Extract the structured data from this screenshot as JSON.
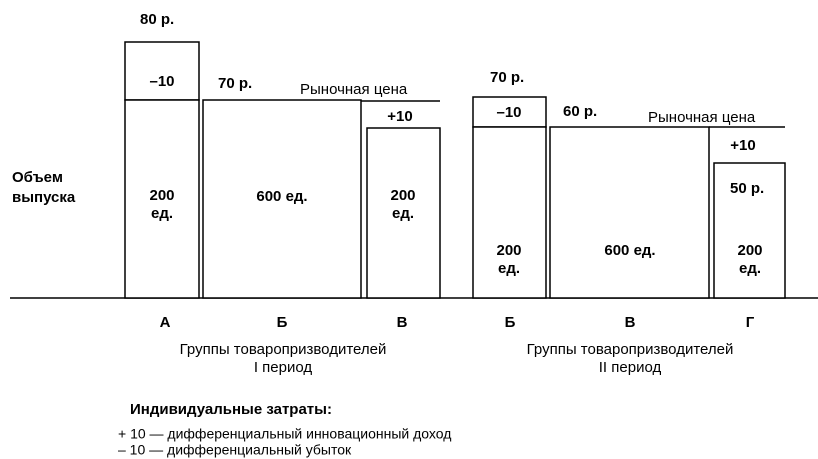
{
  "axis_label": [
    "Объем",
    "выпуска"
  ],
  "period_1": {
    "prices": [
      "80 р.",
      "70 р."
    ],
    "market_price": "Рыночная цена",
    "boxes": [
      {
        "adjustment": "–10",
        "volume": [
          "200",
          "ед."
        ]
      },
      {
        "volume": "600 ед."
      },
      {
        "adjustment": "+10",
        "volume": [
          "200",
          "ед."
        ]
      }
    ],
    "groups": [
      "А",
      "Б",
      "В"
    ],
    "caption": [
      "Группы товаропризводителей",
      "I период"
    ]
  },
  "period_2": {
    "prices": [
      "70 р.",
      "60 р.",
      "50 р."
    ],
    "market_price": "Рыночная цена",
    "boxes": [
      {
        "adjustment": "–10",
        "volume": [
          "200",
          "ед."
        ]
      },
      {
        "volume": "600 ед."
      },
      {
        "adjustment": "+10",
        "volume": [
          "200",
          "ед."
        ]
      }
    ],
    "groups": [
      "Б",
      "В",
      "Г"
    ],
    "caption": [
      "Группы товаропризводителей",
      "II период"
    ]
  },
  "legend": {
    "title": "Индивидуальные затраты:",
    "items": [
      "+ 10 — дифференциальный инновационный доход",
      "– 10 — дифференциальный убыток"
    ]
  }
}
